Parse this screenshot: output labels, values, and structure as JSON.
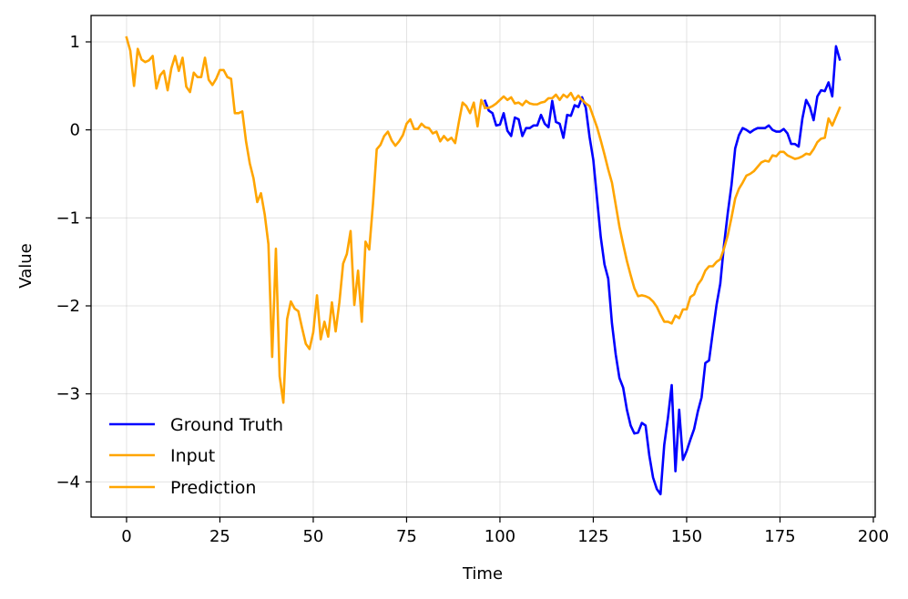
{
  "chart_data": {
    "type": "line",
    "title": "",
    "xlabel": "Time",
    "ylabel": "Value",
    "xlim": [
      -9.5,
      200.5
    ],
    "ylim": [
      -4.4,
      1.3
    ],
    "xticks": [
      0,
      25,
      50,
      75,
      100,
      125,
      150,
      175,
      200
    ],
    "yticks": [
      1,
      0,
      -1,
      -2,
      -3,
      -4
    ],
    "ytick_labels": [
      "1",
      "0",
      "−1",
      "−2",
      "−3",
      "−4"
    ],
    "grid": true,
    "legend_position": "lower-left",
    "series": [
      {
        "name": "Ground Truth",
        "color": "#0000ff",
        "x": [
          96,
          97,
          98,
          99,
          100,
          101,
          102,
          103,
          104,
          105,
          106,
          107,
          108,
          109,
          110,
          111,
          112,
          113,
          114,
          115,
          116,
          117,
          118,
          119,
          120,
          121,
          122,
          123,
          124,
          125,
          126,
          127,
          128,
          129,
          130,
          131,
          132,
          133,
          134,
          135,
          136,
          137,
          138,
          139,
          140,
          141,
          142,
          143,
          144,
          145,
          146,
          147,
          148,
          149,
          150,
          151,
          152,
          153,
          154,
          155,
          156,
          157,
          158,
          159,
          160,
          161,
          162,
          163,
          164,
          165,
          166,
          167,
          168,
          169,
          170,
          171,
          172,
          173,
          174,
          175,
          176,
          177,
          178,
          179,
          180,
          181,
          182,
          183,
          184,
          185,
          186,
          187,
          188,
          189,
          190,
          191
        ],
        "y": [
          0.33,
          0.22,
          0.19,
          0.05,
          0.06,
          0.19,
          -0.01,
          -0.07,
          0.14,
          0.12,
          -0.07,
          0.02,
          0.02,
          0.05,
          0.05,
          0.17,
          0.07,
          0.03,
          0.33,
          0.09,
          0.07,
          -0.09,
          0.17,
          0.16,
          0.28,
          0.26,
          0.37,
          0.25,
          -0.08,
          -0.34,
          -0.78,
          -1.22,
          -1.53,
          -1.69,
          -2.2,
          -2.55,
          -2.82,
          -2.93,
          -3.18,
          -3.36,
          -3.45,
          -3.44,
          -3.33,
          -3.36,
          -3.7,
          -3.95,
          -4.08,
          -4.14,
          -3.58,
          -3.27,
          -2.9,
          -3.88,
          -3.18,
          -3.75,
          -3.65,
          -3.52,
          -3.4,
          -3.2,
          -3.04,
          -2.65,
          -2.62,
          -2.3,
          -1.99,
          -1.75,
          -1.31,
          -0.95,
          -0.63,
          -0.21,
          -0.06,
          0.02,
          0,
          -0.03,
          0,
          0.02,
          0.02,
          0.02,
          0.05,
          0,
          -0.02,
          -0.02,
          0.01,
          -0.04,
          -0.16,
          -0.16,
          -0.19,
          0.13,
          0.34,
          0.26,
          0.11,
          0.38,
          0.45,
          0.44,
          0.54,
          0.38,
          0.95,
          0.8
        ]
      },
      {
        "name": "Input",
        "color": "#ffa500",
        "x": [
          0,
          1,
          2,
          3,
          4,
          5,
          6,
          7,
          8,
          9,
          10,
          11,
          12,
          13,
          14,
          15,
          16,
          17,
          18,
          19,
          20,
          21,
          22,
          23,
          24,
          25,
          26,
          27,
          28,
          29,
          30,
          31,
          32,
          33,
          34,
          35,
          36,
          37,
          38,
          39,
          40,
          41,
          42,
          43,
          44,
          45,
          46,
          47,
          48,
          49,
          50,
          51,
          52,
          53,
          54,
          55,
          56,
          57,
          58,
          59,
          60,
          61,
          62,
          63,
          64,
          65,
          66,
          67,
          68,
          69,
          70,
          71,
          72,
          73,
          74,
          75,
          76,
          77,
          78,
          79,
          80,
          81,
          82,
          83,
          84,
          85,
          86,
          87,
          88,
          89,
          90,
          91,
          92,
          93,
          94,
          95,
          96
        ],
        "y": [
          1.05,
          0.9,
          0.5,
          0.92,
          0.8,
          0.77,
          0.79,
          0.84,
          0.47,
          0.62,
          0.67,
          0.45,
          0.7,
          0.84,
          0.67,
          0.82,
          0.49,
          0.43,
          0.65,
          0.6,
          0.6,
          0.82,
          0.57,
          0.51,
          0.58,
          0.68,
          0.68,
          0.6,
          0.58,
          0.19,
          0.19,
          0.21,
          -0.13,
          -0.38,
          -0.55,
          -0.82,
          -0.72,
          -0.96,
          -1.3,
          -2.58,
          -1.35,
          -2.8,
          -3.1,
          -2.15,
          -1.95,
          -2.03,
          -2.06,
          -2.25,
          -2.43,
          -2.49,
          -2.3,
          -1.88,
          -2.38,
          -2.18,
          -2.35,
          -1.96,
          -2.29,
          -1.96,
          -1.52,
          -1.41,
          -1.15,
          -1.99,
          -1.6,
          -2.18,
          -1.27,
          -1.36,
          -0.84,
          -0.22,
          -0.17,
          -0.07,
          -0.02,
          -0.12,
          -0.18,
          -0.13,
          -0.06,
          0.07,
          0.12,
          0.01,
          0.01,
          0.07,
          0.03,
          0.02,
          -0.04,
          -0.02,
          -0.13,
          -0.07,
          -0.12,
          -0.09,
          -0.15,
          0.09,
          0.31,
          0.27,
          0.19,
          0.31,
          0.04,
          0.34,
          0.25
        ]
      },
      {
        "name": "Prediction",
        "color": "#ffa500",
        "x": [
          96,
          97,
          98,
          99,
          100,
          101,
          102,
          103,
          104,
          105,
          106,
          107,
          108,
          109,
          110,
          111,
          112,
          113,
          114,
          115,
          116,
          117,
          118,
          119,
          120,
          121,
          122,
          123,
          124,
          125,
          126,
          127,
          128,
          129,
          130,
          131,
          132,
          133,
          134,
          135,
          136,
          137,
          138,
          139,
          140,
          141,
          142,
          143,
          144,
          145,
          146,
          147,
          148,
          149,
          150,
          151,
          152,
          153,
          154,
          155,
          156,
          157,
          158,
          159,
          160,
          161,
          162,
          163,
          164,
          165,
          166,
          167,
          168,
          169,
          170,
          171,
          172,
          173,
          174,
          175,
          176,
          177,
          178,
          179,
          180,
          181,
          182,
          183,
          184,
          185,
          186,
          187,
          188,
          189,
          190,
          191
        ],
        "y": [
          0.25,
          0.25,
          0.27,
          0.3,
          0.34,
          0.38,
          0.34,
          0.37,
          0.3,
          0.31,
          0.28,
          0.33,
          0.3,
          0.29,
          0.29,
          0.31,
          0.32,
          0.36,
          0.36,
          0.4,
          0.34,
          0.4,
          0.37,
          0.42,
          0.34,
          0.39,
          0.34,
          0.3,
          0.27,
          0.15,
          0.03,
          -0.12,
          -0.28,
          -0.45,
          -0.6,
          -0.85,
          -1.1,
          -1.3,
          -1.49,
          -1.65,
          -1.8,
          -1.89,
          -1.88,
          -1.89,
          -1.91,
          -1.95,
          -2.01,
          -2.1,
          -2.18,
          -2.18,
          -2.2,
          -2.11,
          -2.14,
          -2.04,
          -2.04,
          -1.9,
          -1.87,
          -1.76,
          -1.7,
          -1.6,
          -1.55,
          -1.55,
          -1.5,
          -1.47,
          -1.35,
          -1.2,
          -1.0,
          -0.78,
          -0.67,
          -0.6,
          -0.52,
          -0.5,
          -0.47,
          -0.42,
          -0.37,
          -0.35,
          -0.36,
          -0.29,
          -0.3,
          -0.25,
          -0.25,
          -0.29,
          -0.31,
          -0.33,
          -0.32,
          -0.3,
          -0.27,
          -0.28,
          -0.22,
          -0.14,
          -0.1,
          -0.09,
          0.13,
          0.05,
          0.15,
          0.25
        ]
      }
    ]
  }
}
